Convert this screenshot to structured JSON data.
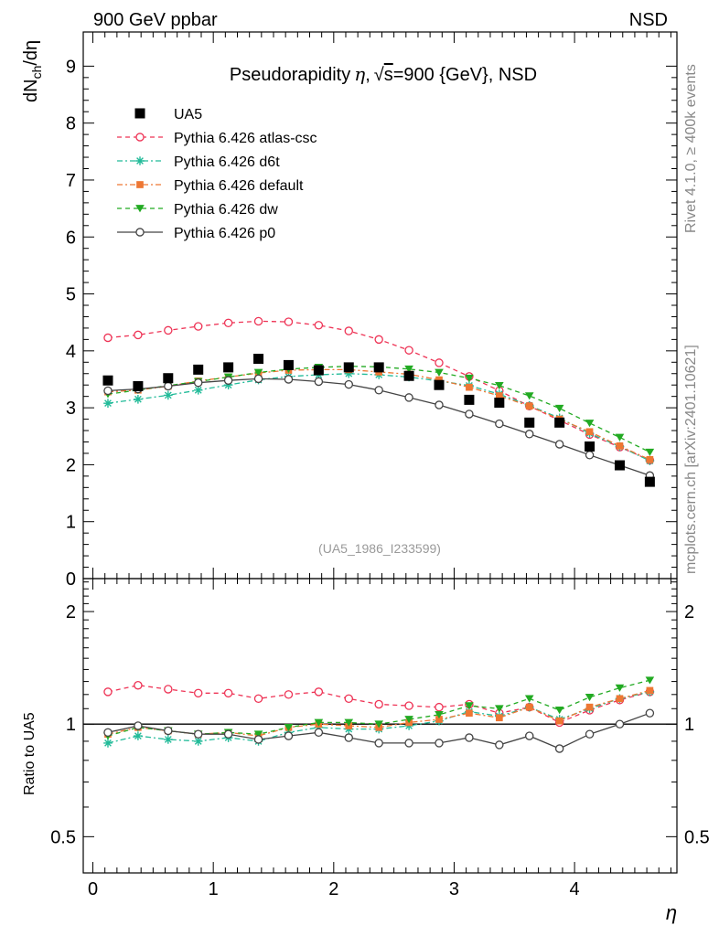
{
  "header": {
    "left_label": "900 GeV ppbar",
    "right_label": "NSD",
    "side_label_top": "Rivet 4.1.0, ≥ 400k events",
    "side_label_bottom": "mcplots.cern.ch [arXiv:2401.10621]"
  },
  "chart_data": [
    {
      "type": "scatter",
      "title": "Pseudorapidity η, √s=900 {GeV}, NSD",
      "title_parts": {
        "prefix": "Pseudorapidity",
        "eta": "η",
        "sep": ",",
        "root": "√",
        "s": "s",
        "rest": "=900 {GeV}, NSD"
      },
      "ylabel": "dN_ch/dη",
      "ylabel_parts": {
        "d": "d",
        "N": "N",
        "sub": "ch",
        "tail": "/dη"
      },
      "xlabel": "η",
      "reference_tag": "(UA5_1986_I233599)",
      "xlim": [
        -0.08,
        4.85
      ],
      "ylim": [
        0,
        9.6
      ],
      "yticks": [
        0,
        1,
        2,
        3,
        4,
        5,
        6,
        7,
        8,
        9
      ],
      "ytick_labels": [
        "0",
        "1",
        "2",
        "3",
        "4",
        "5",
        "6",
        "7",
        "8",
        "9"
      ],
      "x": [
        0.125,
        0.375,
        0.625,
        0.875,
        1.125,
        1.375,
        1.625,
        1.875,
        2.125,
        2.375,
        2.625,
        2.875,
        3.125,
        3.375,
        3.625,
        3.875,
        4.125,
        4.375,
        4.625
      ],
      "series": [
        {
          "name": "UA5",
          "color": "#000000",
          "marker": "square",
          "line": "none",
          "values": [
            3.48,
            3.38,
            3.52,
            3.67,
            3.71,
            3.86,
            3.75,
            3.66,
            3.71,
            3.71,
            3.56,
            3.4,
            3.14,
            3.09,
            2.74,
            2.74,
            2.32,
            1.99,
            1.7
          ]
        },
        {
          "name": "Pythia 6.426 atlas-csc",
          "color": "#ee3355",
          "marker": "open-circle",
          "line": "dashed",
          "values": [
            4.23,
            4.28,
            4.36,
            4.43,
            4.49,
            4.52,
            4.51,
            4.45,
            4.35,
            4.2,
            4.01,
            3.79,
            3.55,
            3.3,
            3.03,
            2.78,
            2.53,
            2.31,
            2.08
          ]
        },
        {
          "name": "Pythia 6.426 d6t",
          "color": "#22bb99",
          "marker": "asterisk",
          "line": "dashdot",
          "values": [
            3.08,
            3.15,
            3.22,
            3.31,
            3.4,
            3.49,
            3.55,
            3.58,
            3.6,
            3.58,
            3.54,
            3.47,
            3.39,
            3.24,
            3.04,
            2.82,
            2.55,
            2.32,
            2.07
          ]
        },
        {
          "name": "Pythia 6.426 default",
          "color": "#ee7733",
          "marker": "filled-square",
          "line": "dashdot",
          "values": [
            3.28,
            3.31,
            3.38,
            3.47,
            3.54,
            3.61,
            3.66,
            3.67,
            3.67,
            3.63,
            3.59,
            3.49,
            3.36,
            3.21,
            3.03,
            2.8,
            2.58,
            2.33,
            2.09
          ]
        },
        {
          "name": "Pythia 6.426 dw",
          "color": "#22aa22",
          "marker": "triangle-down",
          "line": "dashed",
          "values": [
            3.24,
            3.31,
            3.39,
            3.46,
            3.54,
            3.62,
            3.68,
            3.71,
            3.73,
            3.72,
            3.68,
            3.62,
            3.52,
            3.39,
            3.21,
            2.99,
            2.73,
            2.48,
            2.22
          ]
        },
        {
          "name": "Pythia 6.426 p0",
          "color": "#444444",
          "marker": "open-circle",
          "line": "solid",
          "values": [
            3.3,
            3.33,
            3.38,
            3.44,
            3.48,
            3.51,
            3.5,
            3.46,
            3.41,
            3.31,
            3.18,
            3.05,
            2.89,
            2.72,
            2.54,
            2.36,
            2.17,
            1.99,
            1.81
          ]
        }
      ]
    },
    {
      "type": "line",
      "title": "",
      "ylabel": "Ratio to UA5",
      "scale": "log",
      "ylim": [
        0.4,
        2.45
      ],
      "xticks": [
        0,
        1,
        2,
        3,
        4
      ],
      "xtick_labels": [
        "0",
        "1",
        "2",
        "3",
        "4"
      ],
      "yticks": [
        0.5,
        1,
        2
      ],
      "ytick_labels": [
        "0.5",
        "1",
        "2"
      ],
      "reference_line": 1,
      "x": [
        0.125,
        0.375,
        0.625,
        0.875,
        1.125,
        1.375,
        1.625,
        1.875,
        2.125,
        2.375,
        2.625,
        2.875,
        3.125,
        3.375,
        3.625,
        3.875,
        4.125,
        4.375,
        4.625
      ],
      "series": [
        {
          "name": "Pythia 6.426 atlas-csc",
          "color": "#ee3355",
          "marker": "open-circle",
          "line": "dashed",
          "values": [
            1.22,
            1.27,
            1.24,
            1.21,
            1.21,
            1.17,
            1.2,
            1.22,
            1.17,
            1.13,
            1.12,
            1.11,
            1.13,
            1.07,
            1.11,
            1.01,
            1.09,
            1.16,
            1.22
          ]
        },
        {
          "name": "Pythia 6.426 d6t",
          "color": "#22bb99",
          "marker": "asterisk",
          "line": "dashdot",
          "values": [
            0.89,
            0.93,
            0.91,
            0.9,
            0.92,
            0.9,
            0.95,
            0.98,
            0.97,
            0.97,
            0.99,
            1.02,
            1.08,
            1.05,
            1.11,
            1.03,
            1.1,
            1.17,
            1.22
          ]
        },
        {
          "name": "Pythia 6.426 default",
          "color": "#ee7733",
          "marker": "filled-square",
          "line": "dashdot",
          "values": [
            0.94,
            0.98,
            0.96,
            0.94,
            0.95,
            0.93,
            0.98,
            1.0,
            0.99,
            0.98,
            1.01,
            1.03,
            1.07,
            1.04,
            1.11,
            1.02,
            1.11,
            1.17,
            1.23
          ]
        },
        {
          "name": "Pythia 6.426 dw",
          "color": "#22aa22",
          "marker": "triangle-down",
          "line": "dashed",
          "values": [
            0.93,
            0.98,
            0.96,
            0.94,
            0.95,
            0.94,
            0.98,
            1.01,
            1.01,
            1.0,
            1.03,
            1.06,
            1.12,
            1.1,
            1.17,
            1.09,
            1.18,
            1.25,
            1.31
          ]
        },
        {
          "name": "Pythia 6.426 p0",
          "color": "#444444",
          "marker": "open-circle",
          "line": "solid",
          "values": [
            0.95,
            0.99,
            0.96,
            0.94,
            0.94,
            0.91,
            0.93,
            0.95,
            0.92,
            0.89,
            0.89,
            0.89,
            0.92,
            0.88,
            0.93,
            0.86,
            0.94,
            1.0,
            1.07
          ]
        }
      ]
    }
  ]
}
